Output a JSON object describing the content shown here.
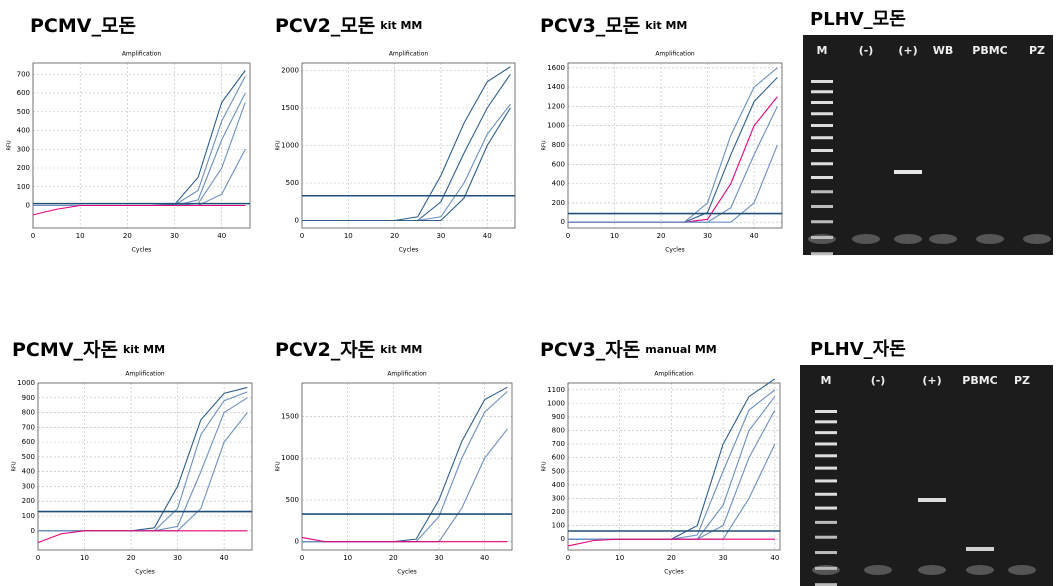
{
  "chart_data": [
    {
      "type": "line",
      "panel_title": "PCMV_모돈",
      "title": "Amplification",
      "x_label": "Cycles",
      "y_label": "RFU",
      "x": [
        0,
        5,
        10,
        15,
        20,
        25,
        30,
        35,
        40,
        45
      ],
      "xlim": [
        0,
        46
      ],
      "xticks": [
        0,
        10,
        20,
        30,
        40
      ],
      "ylim": [
        -120,
        760
      ],
      "yticks": [
        0,
        100,
        200,
        300,
        400,
        500,
        600,
        700
      ],
      "grid": true,
      "threshold": 10,
      "threshold_color": "#1f4e79",
      "series": [
        {
          "color": "#2e5f8f",
          "values": [
            0,
            0,
            0,
            0,
            0,
            0,
            5,
            150,
            550,
            720
          ]
        },
        {
          "color": "#6a8fc0",
          "values": [
            0,
            0,
            0,
            0,
            0,
            0,
            2,
            80,
            450,
            690
          ]
        },
        {
          "color": "#6a8fc0",
          "values": [
            0,
            0,
            0,
            0,
            0,
            0,
            0,
            30,
            350,
            600
          ]
        },
        {
          "color": "#6a8fc0",
          "values": [
            0,
            0,
            0,
            0,
            0,
            0,
            0,
            10,
            200,
            550
          ]
        },
        {
          "color": "#6a8fc0",
          "values": [
            0,
            0,
            0,
            0,
            0,
            0,
            0,
            0,
            60,
            300
          ]
        },
        {
          "color": "#e6007e",
          "values": [
            -50,
            -20,
            0,
            0,
            0,
            0,
            0,
            0,
            0,
            0
          ]
        }
      ]
    },
    {
      "type": "line",
      "panel_title": "PCV2_모돈",
      "panel_note": "kit MM",
      "title": "Amplification",
      "x_label": "Cycles",
      "y_label": "RFU",
      "x": [
        0,
        5,
        10,
        15,
        20,
        25,
        30,
        35,
        40,
        45
      ],
      "xlim": [
        0,
        46
      ],
      "xticks": [
        0,
        10,
        20,
        30,
        40
      ],
      "ylim": [
        -100,
        2100
      ],
      "yticks": [
        0,
        500,
        1000,
        1500,
        2000
      ],
      "grid": true,
      "threshold": 330,
      "threshold_color": "#1f4e79",
      "series": [
        {
          "color": "#2e5f8f",
          "values": [
            0,
            0,
            0,
            0,
            0,
            50,
            600,
            1300,
            1850,
            2050
          ]
        },
        {
          "color": "#2e5f8f",
          "values": [
            0,
            0,
            0,
            0,
            0,
            0,
            250,
            900,
            1500,
            1950
          ]
        },
        {
          "color": "#6a8fc0",
          "values": [
            0,
            0,
            0,
            0,
            0,
            0,
            50,
            500,
            1150,
            1550
          ]
        },
        {
          "color": "#2e5f8f",
          "values": [
            0,
            0,
            0,
            0,
            0,
            0,
            0,
            300,
            1000,
            1500
          ]
        }
      ]
    },
    {
      "type": "line",
      "panel_title": "PCV3_모돈",
      "panel_note": "kit MM",
      "title": "Amplification",
      "x_label": "Cycles",
      "y_label": "RFU",
      "x": [
        0,
        5,
        10,
        15,
        20,
        25,
        30,
        35,
        40,
        45
      ],
      "xlim": [
        0,
        46
      ],
      "xticks": [
        0,
        10,
        20,
        30,
        40
      ],
      "ylim": [
        -60,
        1650
      ],
      "yticks": [
        0,
        200,
        400,
        600,
        800,
        1000,
        1200,
        1400,
        1600
      ],
      "grid": true,
      "threshold": 90,
      "threshold_color": "#1f4e79",
      "series": [
        {
          "color": "#6a8fc0",
          "values": [
            0,
            0,
            0,
            0,
            0,
            0,
            200,
            900,
            1400,
            1600
          ]
        },
        {
          "color": "#2e5f8f",
          "values": [
            0,
            0,
            0,
            0,
            0,
            0,
            100,
            700,
            1250,
            1500
          ]
        },
        {
          "color": "#e6007e",
          "values": [
            0,
            0,
            0,
            0,
            0,
            0,
            30,
            400,
            1000,
            1300
          ]
        },
        {
          "color": "#6a8fc0",
          "values": [
            0,
            0,
            0,
            0,
            0,
            0,
            0,
            150,
            700,
            1200
          ]
        },
        {
          "color": "#6a8fc0",
          "values": [
            0,
            0,
            0,
            0,
            0,
            0,
            0,
            0,
            200,
            800
          ]
        }
      ]
    },
    {
      "type": "line",
      "panel_title": "PCMV_자돈",
      "panel_note": "kit MM",
      "title": "Amplification",
      "x_label": "Cycles",
      "y_label": "RFU",
      "x": [
        0,
        5,
        10,
        15,
        20,
        25,
        30,
        35,
        40,
        45
      ],
      "xlim": [
        0,
        46
      ],
      "xticks": [
        0,
        10,
        20,
        30,
        40
      ],
      "ylim": [
        -130,
        1000
      ],
      "yticks": [
        0,
        100,
        200,
        300,
        400,
        500,
        600,
        700,
        800,
        900,
        1000
      ],
      "grid": true,
      "threshold": 130,
      "threshold_color": "#1f4e79",
      "series": [
        {
          "color": "#2e5f8f",
          "values": [
            0,
            0,
            0,
            0,
            0,
            20,
            300,
            750,
            930,
            970
          ]
        },
        {
          "color": "#6a8fc0",
          "values": [
            0,
            0,
            0,
            0,
            0,
            0,
            150,
            650,
            880,
            940
          ]
        },
        {
          "color": "#6a8fc0",
          "values": [
            0,
            0,
            0,
            0,
            0,
            0,
            30,
            400,
            800,
            900
          ]
        },
        {
          "color": "#6a8fc0",
          "values": [
            0,
            0,
            0,
            0,
            0,
            0,
            0,
            150,
            600,
            800
          ]
        },
        {
          "color": "#e6007e",
          "values": [
            -80,
            -20,
            0,
            0,
            0,
            0,
            0,
            0,
            0,
            0
          ]
        }
      ]
    },
    {
      "type": "line",
      "panel_title": "PCV2_자돈",
      "panel_note": "kit MM",
      "title": "Amplification",
      "x_label": "Cycles",
      "y_label": "RFU",
      "x": [
        0,
        5,
        10,
        15,
        20,
        25,
        30,
        35,
        40,
        45
      ],
      "xlim": [
        0,
        46
      ],
      "xticks": [
        0,
        10,
        20,
        30,
        40
      ],
      "ylim": [
        -100,
        1900
      ],
      "yticks": [
        0,
        500,
        1000,
        1500
      ],
      "grid": true,
      "threshold": 330,
      "threshold_color": "#1f4e79",
      "series": [
        {
          "color": "#2e5f8f",
          "values": [
            0,
            0,
            0,
            0,
            0,
            30,
            500,
            1200,
            1700,
            1850
          ]
        },
        {
          "color": "#6a8fc0",
          "values": [
            0,
            0,
            0,
            0,
            0,
            0,
            300,
            1000,
            1550,
            1800
          ]
        },
        {
          "color": "#6a8fc0",
          "values": [
            0,
            0,
            0,
            0,
            0,
            0,
            0,
            400,
            1000,
            1350
          ]
        },
        {
          "color": "#e6007e",
          "values": [
            50,
            0,
            0,
            0,
            0,
            0,
            0,
            0,
            0,
            0
          ]
        }
      ]
    },
    {
      "type": "line",
      "panel_title": "PCV3_자돈",
      "panel_note": "manual MM",
      "title": "Amplification",
      "x_label": "Cycles",
      "y_label": "RFU",
      "x": [
        0,
        5,
        10,
        15,
        20,
        25,
        30,
        35,
        40
      ],
      "xlim": [
        0,
        41
      ],
      "xticks": [
        0,
        10,
        20,
        30,
        40
      ],
      "ylim": [
        -80,
        1150
      ],
      "yticks": [
        0,
        100,
        200,
        300,
        400,
        500,
        600,
        700,
        800,
        900,
        1000,
        1100
      ],
      "grid": true,
      "threshold": 60,
      "threshold_color": "#1f4e79",
      "series": [
        {
          "color": "#2e5f8f",
          "values": [
            0,
            0,
            0,
            0,
            0,
            100,
            700,
            1050,
            1180
          ]
        },
        {
          "color": "#6a8fc0",
          "values": [
            0,
            0,
            0,
            0,
            0,
            30,
            500,
            950,
            1100
          ]
        },
        {
          "color": "#6a8fc0",
          "values": [
            0,
            0,
            0,
            0,
            0,
            0,
            250,
            800,
            1050
          ]
        },
        {
          "color": "#6a8fc0",
          "values": [
            0,
            0,
            0,
            0,
            0,
            0,
            100,
            600,
            950
          ]
        },
        {
          "color": "#6a8fc0",
          "values": [
            0,
            0,
            0,
            0,
            0,
            0,
            0,
            300,
            700
          ]
        },
        {
          "color": "#e6007e",
          "values": [
            -50,
            -10,
            0,
            0,
            0,
            0,
            0,
            0,
            0
          ]
        }
      ]
    }
  ],
  "gels": [
    {
      "title": "PLHV_모돈",
      "lanes": [
        "M",
        "(-)",
        "(+)",
        "WB",
        "PBMC",
        "PZ"
      ]
    },
    {
      "title": "PLHV_자돈",
      "lanes": [
        "M",
        "(-)",
        "(+)",
        "PBMC",
        "PZ"
      ]
    }
  ]
}
